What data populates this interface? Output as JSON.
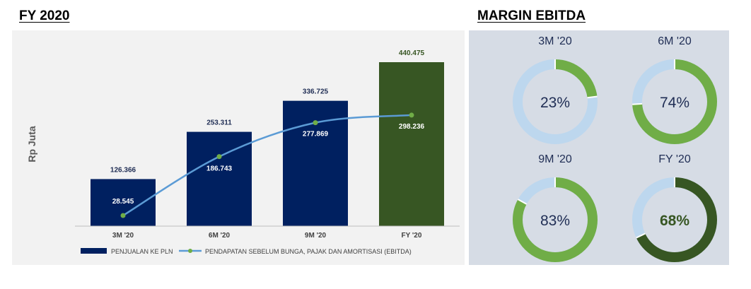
{
  "left_heading": "FY 2020",
  "right_heading": "MARGIN EBITDA",
  "chart_data": [
    {
      "type": "bar",
      "ylabel": "Rp Juta",
      "categories": [
        "3M '20",
        "6M '20",
        "9M '20",
        "FY '20"
      ],
      "series": [
        {
          "name": "PENJUALAN KE PLN",
          "kind": "bar",
          "values": [
            126366,
            253311,
            336725,
            440475
          ],
          "labels": [
            "126.366",
            "253.311",
            "336.725",
            "440.475"
          ],
          "colors": [
            "#002060",
            "#002060",
            "#002060",
            "#375623"
          ]
        },
        {
          "name": "PENDAPATAN SEBELUM BUNGA, PAJAK DAN AMORTISASI (EBITDA)",
          "kind": "line",
          "values": [
            28545,
            186743,
            277869,
            298236
          ],
          "labels": [
            "28.545",
            "186.743",
            "277.869",
            "298.236"
          ],
          "line_color": "#5b9bd5",
          "marker_color": "#70ad47"
        }
      ],
      "ylim": [
        0,
        440475
      ],
      "legend_position": "bottom-left",
      "grid": false
    },
    {
      "type": "pie",
      "variant": "donut",
      "charts": [
        {
          "title": "3M '20",
          "value": 23,
          "label": "23%",
          "color": "#70ad47",
          "label_color": "#1f2d54",
          "label_bold": false
        },
        {
          "title": "6M '20",
          "value": 74,
          "label": "74%",
          "color": "#70ad47",
          "label_color": "#1f2d54",
          "label_bold": false
        },
        {
          "title": "9M '20",
          "value": 83,
          "label": "83%",
          "color": "#70ad47",
          "label_color": "#1f2d54",
          "label_bold": false
        },
        {
          "title": "FY '20",
          "value": 68,
          "label": "68%",
          "color": "#375623",
          "label_color": "#375623",
          "label_bold": true
        }
      ],
      "track_color": "#bdd7ee"
    }
  ]
}
